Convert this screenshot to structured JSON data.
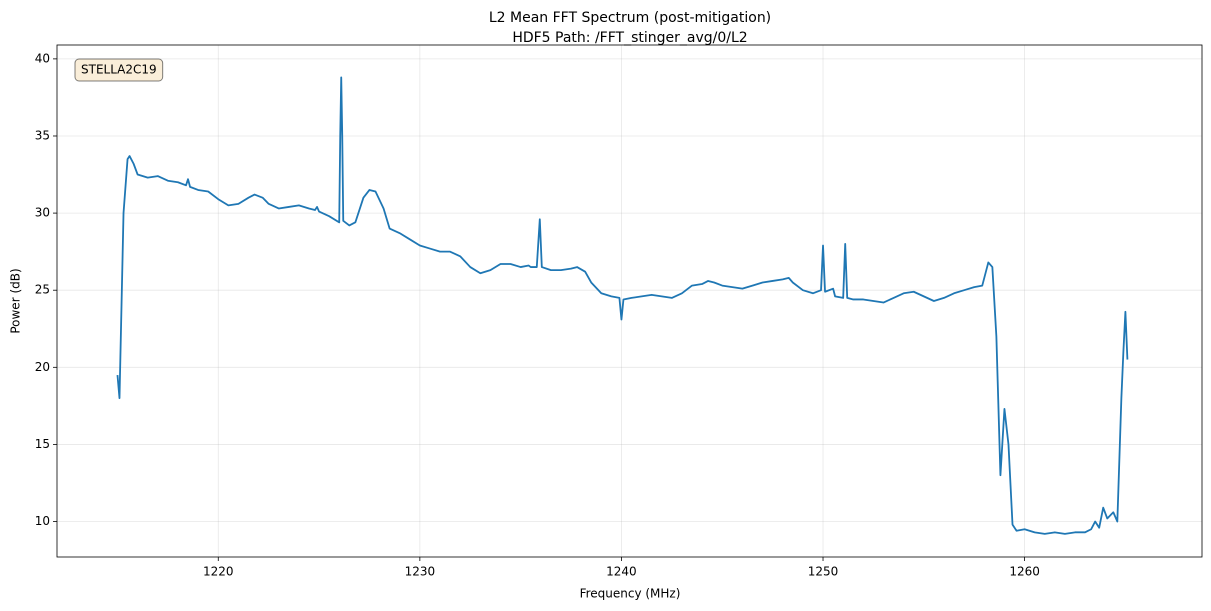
{
  "chart_data": {
    "type": "line",
    "title": "L2 Mean FFT Spectrum (post-mitigation)",
    "subtitle": "HDF5 Path: /FFT_stinger_avg/0/L2",
    "x_label": "Frequency (MHz)",
    "y_label": "Power (dB)",
    "annotation": "STELLA2C19",
    "color": "#1f77b4",
    "grid": true,
    "xlim": [
      1212,
      1268.8
    ],
    "ylim": [
      7.7,
      40.9
    ],
    "xticks": [
      1220,
      1230,
      1240,
      1250,
      1260
    ],
    "yticks": [
      10,
      15,
      20,
      25,
      30,
      35,
      40
    ],
    "x": [
      1215.0,
      1215.1,
      1215.2,
      1215.3,
      1215.5,
      1215.6,
      1215.8,
      1216.0,
      1216.5,
      1217.0,
      1217.5,
      1218.0,
      1218.4,
      1218.5,
      1218.6,
      1219.0,
      1219.5,
      1220.0,
      1220.5,
      1221.0,
      1221.5,
      1221.8,
      1222.2,
      1222.5,
      1223.0,
      1223.5,
      1224.0,
      1224.5,
      1224.8,
      1224.9,
      1225.0,
      1225.5,
      1226.0,
      1226.05,
      1226.1,
      1226.15,
      1226.2,
      1226.5,
      1226.8,
      1227.2,
      1227.5,
      1227.8,
      1228.2,
      1228.5,
      1229.0,
      1229.5,
      1230.0,
      1230.5,
      1231.0,
      1231.5,
      1232.0,
      1232.5,
      1233.0,
      1233.5,
      1234.0,
      1234.5,
      1235.0,
      1235.4,
      1235.5,
      1235.8,
      1235.95,
      1236.05,
      1236.5,
      1237.0,
      1237.5,
      1237.8,
      1238.2,
      1238.5,
      1239.0,
      1239.5,
      1239.9,
      1240.0,
      1240.1,
      1240.5,
      1241.0,
      1241.5,
      1242.0,
      1242.5,
      1243.0,
      1243.5,
      1244.0,
      1244.3,
      1244.6,
      1245.0,
      1245.5,
      1246.0,
      1246.5,
      1247.0,
      1247.5,
      1248.0,
      1248.3,
      1248.5,
      1249.0,
      1249.5,
      1249.9,
      1250.0,
      1250.1,
      1250.5,
      1250.6,
      1251.0,
      1251.1,
      1251.2,
      1251.5,
      1252.0,
      1252.5,
      1253.0,
      1253.5,
      1254.0,
      1254.5,
      1255.0,
      1255.5,
      1256.0,
      1256.5,
      1257.0,
      1257.5,
      1257.9,
      1258.2,
      1258.4,
      1258.6,
      1258.8,
      1259.0,
      1259.2,
      1259.4,
      1259.6,
      1260.0,
      1260.5,
      1261.0,
      1261.5,
      1262.0,
      1262.5,
      1263.0,
      1263.3,
      1263.5,
      1263.7,
      1263.9,
      1264.1,
      1264.4,
      1264.6,
      1264.8,
      1264.9,
      1265.0,
      1265.1
    ],
    "values": [
      19.5,
      18.0,
      24,
      30,
      33.5,
      33.7,
      33.2,
      32.5,
      32.3,
      32.4,
      32.1,
      32.0,
      31.8,
      32.2,
      31.7,
      31.5,
      31.4,
      30.9,
      30.5,
      30.6,
      31.0,
      31.2,
      31.0,
      30.6,
      30.3,
      30.4,
      30.5,
      30.3,
      30.2,
      30.4,
      30.1,
      29.8,
      29.4,
      35,
      38.8,
      35,
      29.5,
      29.2,
      29.4,
      31.0,
      31.5,
      31.4,
      30.3,
      29.0,
      28.7,
      28.3,
      27.9,
      27.7,
      27.5,
      27.5,
      27.2,
      26.5,
      26.1,
      26.3,
      26.7,
      26.7,
      26.5,
      26.6,
      26.5,
      26.5,
      29.6,
      26.5,
      26.3,
      26.3,
      26.4,
      26.5,
      26.2,
      25.5,
      24.8,
      24.6,
      24.5,
      23.1,
      24.4,
      24.5,
      24.6,
      24.7,
      24.6,
      24.5,
      24.8,
      25.3,
      25.4,
      25.6,
      25.5,
      25.3,
      25.2,
      25.1,
      25.3,
      25.5,
      25.6,
      25.7,
      25.8,
      25.5,
      25.0,
      24.8,
      25.0,
      27.9,
      24.9,
      25.1,
      24.6,
      24.5,
      28.0,
      24.5,
      24.4,
      24.4,
      24.3,
      24.2,
      24.5,
      24.8,
      24.9,
      24.6,
      24.3,
      24.5,
      24.8,
      25.0,
      25.2,
      25.3,
      26.8,
      26.5,
      22,
      13,
      17.3,
      15,
      9.8,
      9.4,
      9.5,
      9.3,
      9.2,
      9.3,
      9.2,
      9.3,
      9.3,
      9.5,
      10.0,
      9.6,
      10.9,
      10.2,
      10.6,
      10.0,
      18,
      21,
      23.6,
      20.5
    ]
  }
}
